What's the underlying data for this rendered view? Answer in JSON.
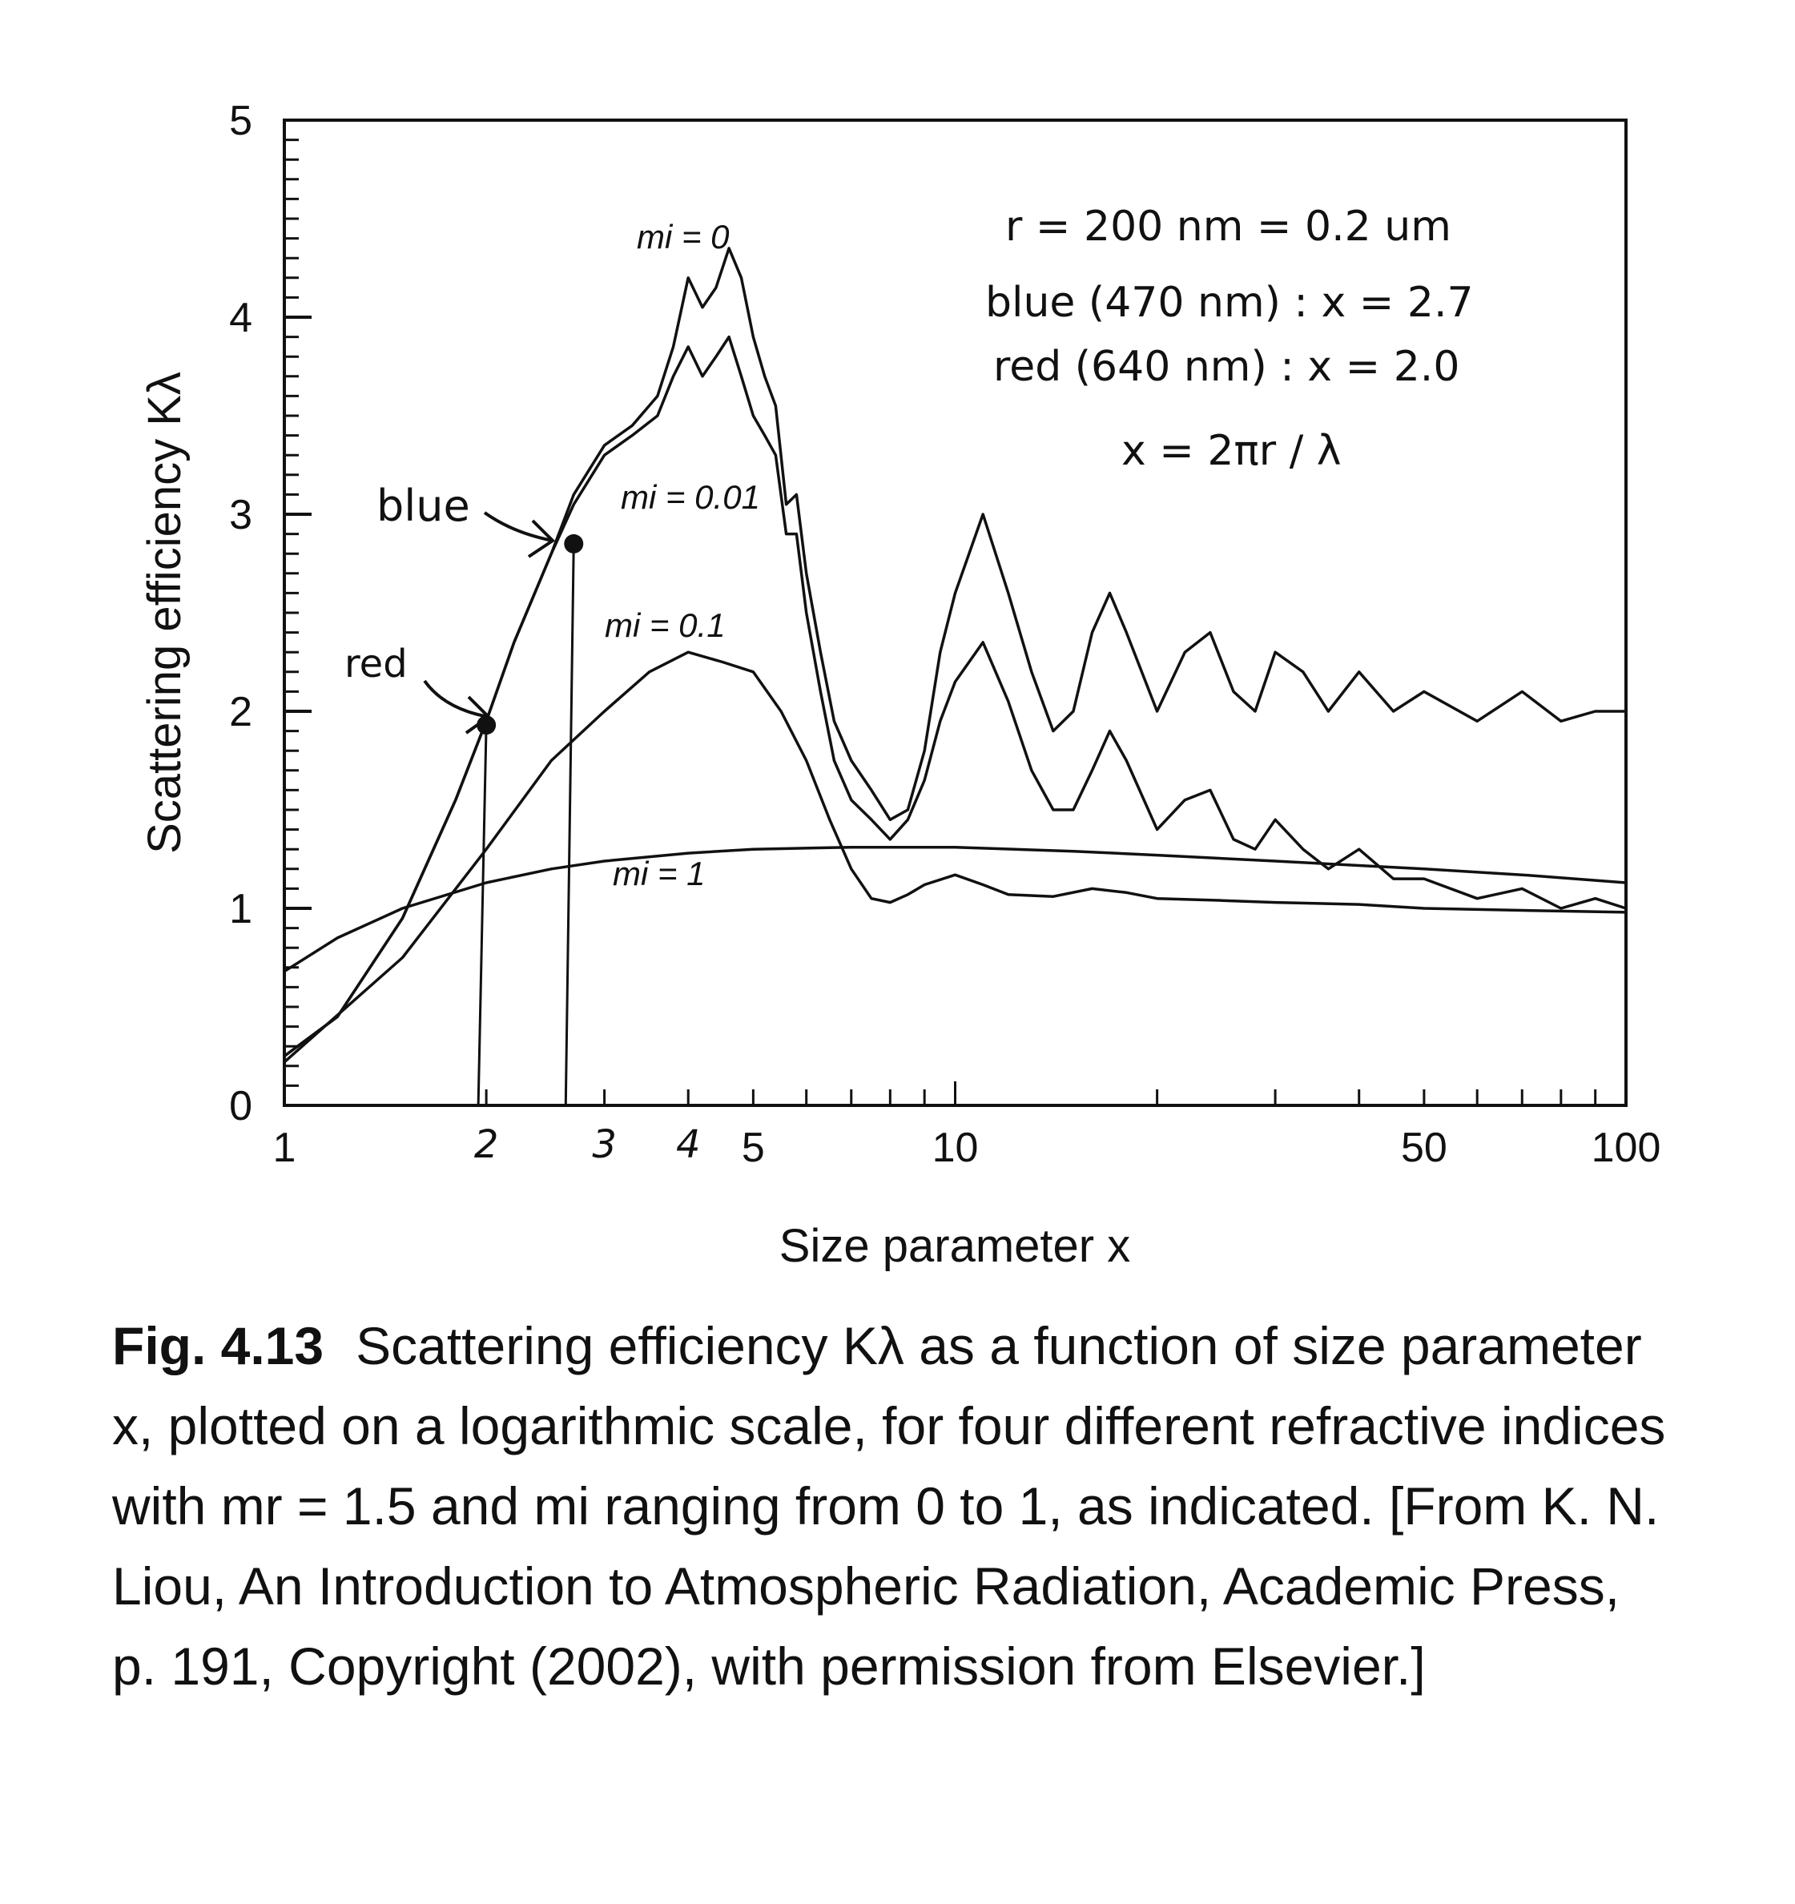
{
  "chart_data": {
    "type": "line",
    "xscale": "log",
    "xlim": [
      1,
      100
    ],
    "ylim": [
      0,
      5
    ],
    "xlabel": "Size parameter x",
    "ylabel": "Scattering efficiency Kλ",
    "x_ticks": [
      1,
      5,
      10,
      50,
      100
    ],
    "y_ticks": [
      0,
      1,
      2,
      3,
      4,
      5
    ],
    "grid": false,
    "handwritten_x_ticks": [
      "2",
      "3",
      "4"
    ],
    "series": [
      {
        "name": "mi=0",
        "x": [
          1,
          1.2,
          1.5,
          1.8,
          2.0,
          2.2,
          2.5,
          2.7,
          3.0,
          3.3,
          3.6,
          3.8,
          4.0,
          4.2,
          4.4,
          4.6,
          4.8,
          5.0,
          5.2,
          5.4,
          5.6,
          5.8,
          6.0,
          6.3,
          6.6,
          7.0,
          7.5,
          8.0,
          8.5,
          9.0,
          9.5,
          10,
          11,
          12,
          13,
          14,
          15,
          16,
          17,
          18,
          20,
          22,
          24,
          26,
          28,
          30,
          33,
          36,
          40,
          45,
          50,
          60,
          70,
          80,
          90,
          100
        ],
        "y": [
          0.25,
          0.45,
          0.95,
          1.55,
          1.95,
          2.35,
          2.8,
          3.1,
          3.35,
          3.45,
          3.6,
          3.85,
          4.2,
          4.05,
          4.15,
          4.35,
          4.2,
          3.9,
          3.7,
          3.55,
          3.05,
          3.1,
          2.7,
          2.3,
          1.95,
          1.75,
          1.6,
          1.45,
          1.5,
          1.8,
          2.3,
          2.6,
          3.0,
          2.6,
          2.2,
          1.9,
          2.0,
          2.4,
          2.6,
          2.4,
          2.0,
          2.3,
          2.4,
          2.1,
          2.0,
          2.3,
          2.2,
          2.0,
          2.2,
          2.0,
          2.1,
          1.95,
          2.1,
          1.95,
          2.0,
          2.0
        ]
      },
      {
        "name": "mi=0.01",
        "x": [
          1,
          1.2,
          1.5,
          1.8,
          2.0,
          2.2,
          2.5,
          2.7,
          3.0,
          3.3,
          3.6,
          3.8,
          4.0,
          4.2,
          4.4,
          4.6,
          4.8,
          5.0,
          5.2,
          5.4,
          5.6,
          5.8,
          6.0,
          6.3,
          6.6,
          7.0,
          7.5,
          8.0,
          8.5,
          9.0,
          9.5,
          10,
          11,
          12,
          13,
          14,
          15,
          16,
          17,
          18,
          20,
          22,
          24,
          26,
          28,
          30,
          33,
          36,
          40,
          45,
          50,
          60,
          70,
          80,
          90,
          100
        ],
        "y": [
          0.25,
          0.45,
          0.95,
          1.55,
          1.95,
          2.35,
          2.8,
          3.05,
          3.3,
          3.4,
          3.5,
          3.7,
          3.85,
          3.7,
          3.8,
          3.9,
          3.7,
          3.5,
          3.4,
          3.3,
          2.9,
          2.9,
          2.5,
          2.1,
          1.75,
          1.55,
          1.45,
          1.35,
          1.45,
          1.65,
          1.95,
          2.15,
          2.35,
          2.05,
          1.7,
          1.5,
          1.5,
          1.7,
          1.9,
          1.75,
          1.4,
          1.55,
          1.6,
          1.35,
          1.3,
          1.45,
          1.3,
          1.2,
          1.3,
          1.15,
          1.15,
          1.05,
          1.1,
          1.0,
          1.05,
          1.0
        ]
      },
      {
        "name": "mi=0.1",
        "x": [
          1,
          1.5,
          2.0,
          2.5,
          3.0,
          3.5,
          4.0,
          4.5,
          5.0,
          5.5,
          6.0,
          6.5,
          7.0,
          7.5,
          8.0,
          8.5,
          9.0,
          10,
          11,
          12,
          14,
          16,
          18,
          20,
          25,
          30,
          40,
          50,
          70,
          100
        ],
        "y": [
          0.22,
          0.75,
          1.3,
          1.75,
          2.0,
          2.2,
          2.3,
          2.25,
          2.2,
          2.0,
          1.75,
          1.45,
          1.2,
          1.05,
          1.03,
          1.07,
          1.12,
          1.17,
          1.12,
          1.07,
          1.06,
          1.1,
          1.08,
          1.05,
          1.04,
          1.03,
          1.02,
          1.0,
          0.99,
          0.98
        ]
      },
      {
        "name": "mi=1",
        "x": [
          1,
          1.2,
          1.5,
          2.0,
          2.5,
          3.0,
          4.0,
          5.0,
          7.0,
          10,
          15,
          20,
          30,
          50,
          70,
          100
        ],
        "y": [
          0.68,
          0.85,
          1.0,
          1.13,
          1.2,
          1.24,
          1.28,
          1.3,
          1.31,
          1.31,
          1.29,
          1.27,
          1.24,
          1.2,
          1.17,
          1.13
        ]
      }
    ],
    "curve_labels": [
      "mi = 0",
      "mi = 0.01",
      "mi = 0.1",
      "mi = 1"
    ],
    "annotations": {
      "lines": [
        "r = 200 nm = 0.2 um",
        "blue (470 nm) : x = 2.7",
        "red (640 nm) : x = 2.0",
        "x = 2πr / λ"
      ],
      "blue_label": "blue",
      "red_label": "red",
      "blue_point": {
        "x": 2.7,
        "y": 2.85
      },
      "red_point": {
        "x": 2.0,
        "y": 1.93
      }
    }
  },
  "caption": {
    "label": "Fig. 4.13",
    "text": "Scattering efficiency Kλ as a function of size parameter x, plotted on a logarithmic scale, for four different refractive indices with mr = 1.5 and mi ranging from 0 to 1, as indicated. [From K. N. Liou, An Introduction to Atmospheric Radiation, Academic Press, p. 191, Copyright (2002), with permission from Elsevier.]"
  }
}
